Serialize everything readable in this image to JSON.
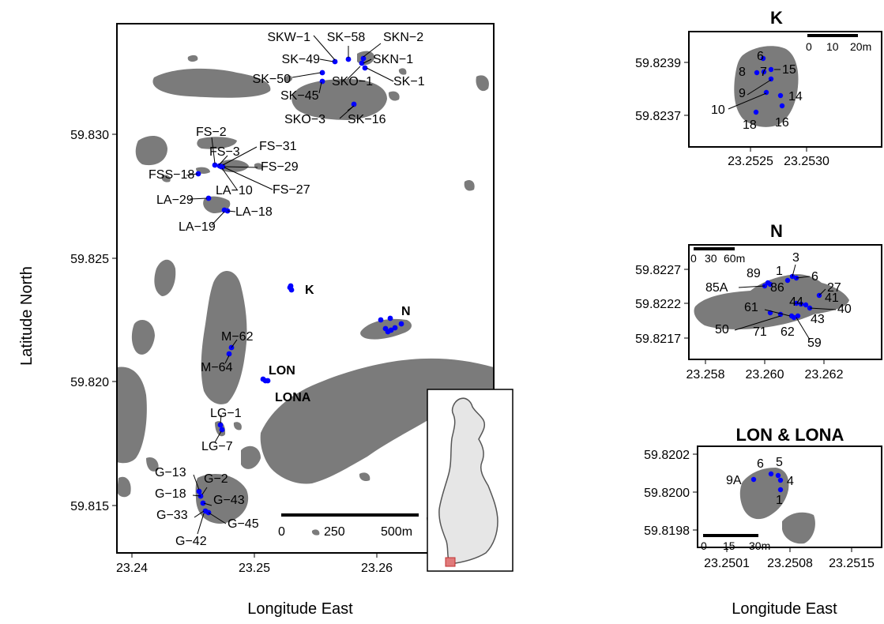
{
  "main_map": {
    "x_axis_title": "Longitude East",
    "y_axis_title": "Latitude North",
    "x_ticks": [
      "23.24",
      "23.25",
      "23.26"
    ],
    "y_ticks": [
      "59.830",
      "59.825",
      "59.820",
      "59.815"
    ],
    "scale_bar": {
      "labels": [
        "0",
        "250",
        "500m"
      ]
    },
    "site_labels": [
      "SKW−1",
      "SK−58",
      "SKN−2",
      "SK−49",
      "SKN−1",
      "SK−50",
      "SKO−1",
      "SK−1",
      "SK−45",
      "SKO−3",
      "SK−16",
      "FS−2",
      "FS−3",
      "FS−31",
      "FS−29",
      "FSS−18",
      "LA−10",
      "FS−27",
      "LA−29",
      "LA−18",
      "LA−19",
      "M−62",
      "M−64",
      "LG−1",
      "LG−7",
      "G−13",
      "G−2",
      "G−18",
      "G−43",
      "G−33",
      "G−45",
      "G−42"
    ],
    "group_labels": [
      "K",
      "N",
      "LON",
      "LONA"
    ]
  },
  "panel_k": {
    "title": "K",
    "y_ticks": [
      "59.8239",
      "59.8237"
    ],
    "x_ticks": [
      "23.2525",
      "23.2530"
    ],
    "scale_bar": {
      "labels": [
        "0",
        "10",
        "20m"
      ]
    },
    "point_labels": [
      "6",
      "8",
      "7",
      "15",
      "9",
      "14",
      "10",
      "18",
      "16"
    ]
  },
  "panel_n": {
    "title": "N",
    "y_ticks": [
      "59.8227",
      "59.8222",
      "59.8217"
    ],
    "x_ticks": [
      "23.258",
      "23.260",
      "23.262"
    ],
    "scale_bar": {
      "labels": [
        "0",
        "30",
        "60m"
      ]
    },
    "point_labels": [
      "3",
      "89",
      "1",
      "6",
      "85A",
      "86",
      "27",
      "44",
      "41",
      "61",
      "40",
      "43",
      "50",
      "71",
      "62",
      "59"
    ]
  },
  "panel_lon": {
    "title": "LON & LONA",
    "y_ticks": [
      "59.8202",
      "59.8200",
      "59.8198"
    ],
    "x_ticks": [
      "23.2501",
      "23.2508",
      "23.2515"
    ],
    "scale_bar": {
      "labels": [
        "0",
        "15",
        "30m"
      ]
    },
    "point_labels": [
      "6",
      "5",
      "9A",
      "4",
      "1"
    ]
  },
  "right_x_axis_title": "Longitude East",
  "colors": {
    "land": "#7b7b7b",
    "sites": "#0000ff",
    "finland": "#e6e6e6",
    "inset_box": "#e07a7a"
  }
}
